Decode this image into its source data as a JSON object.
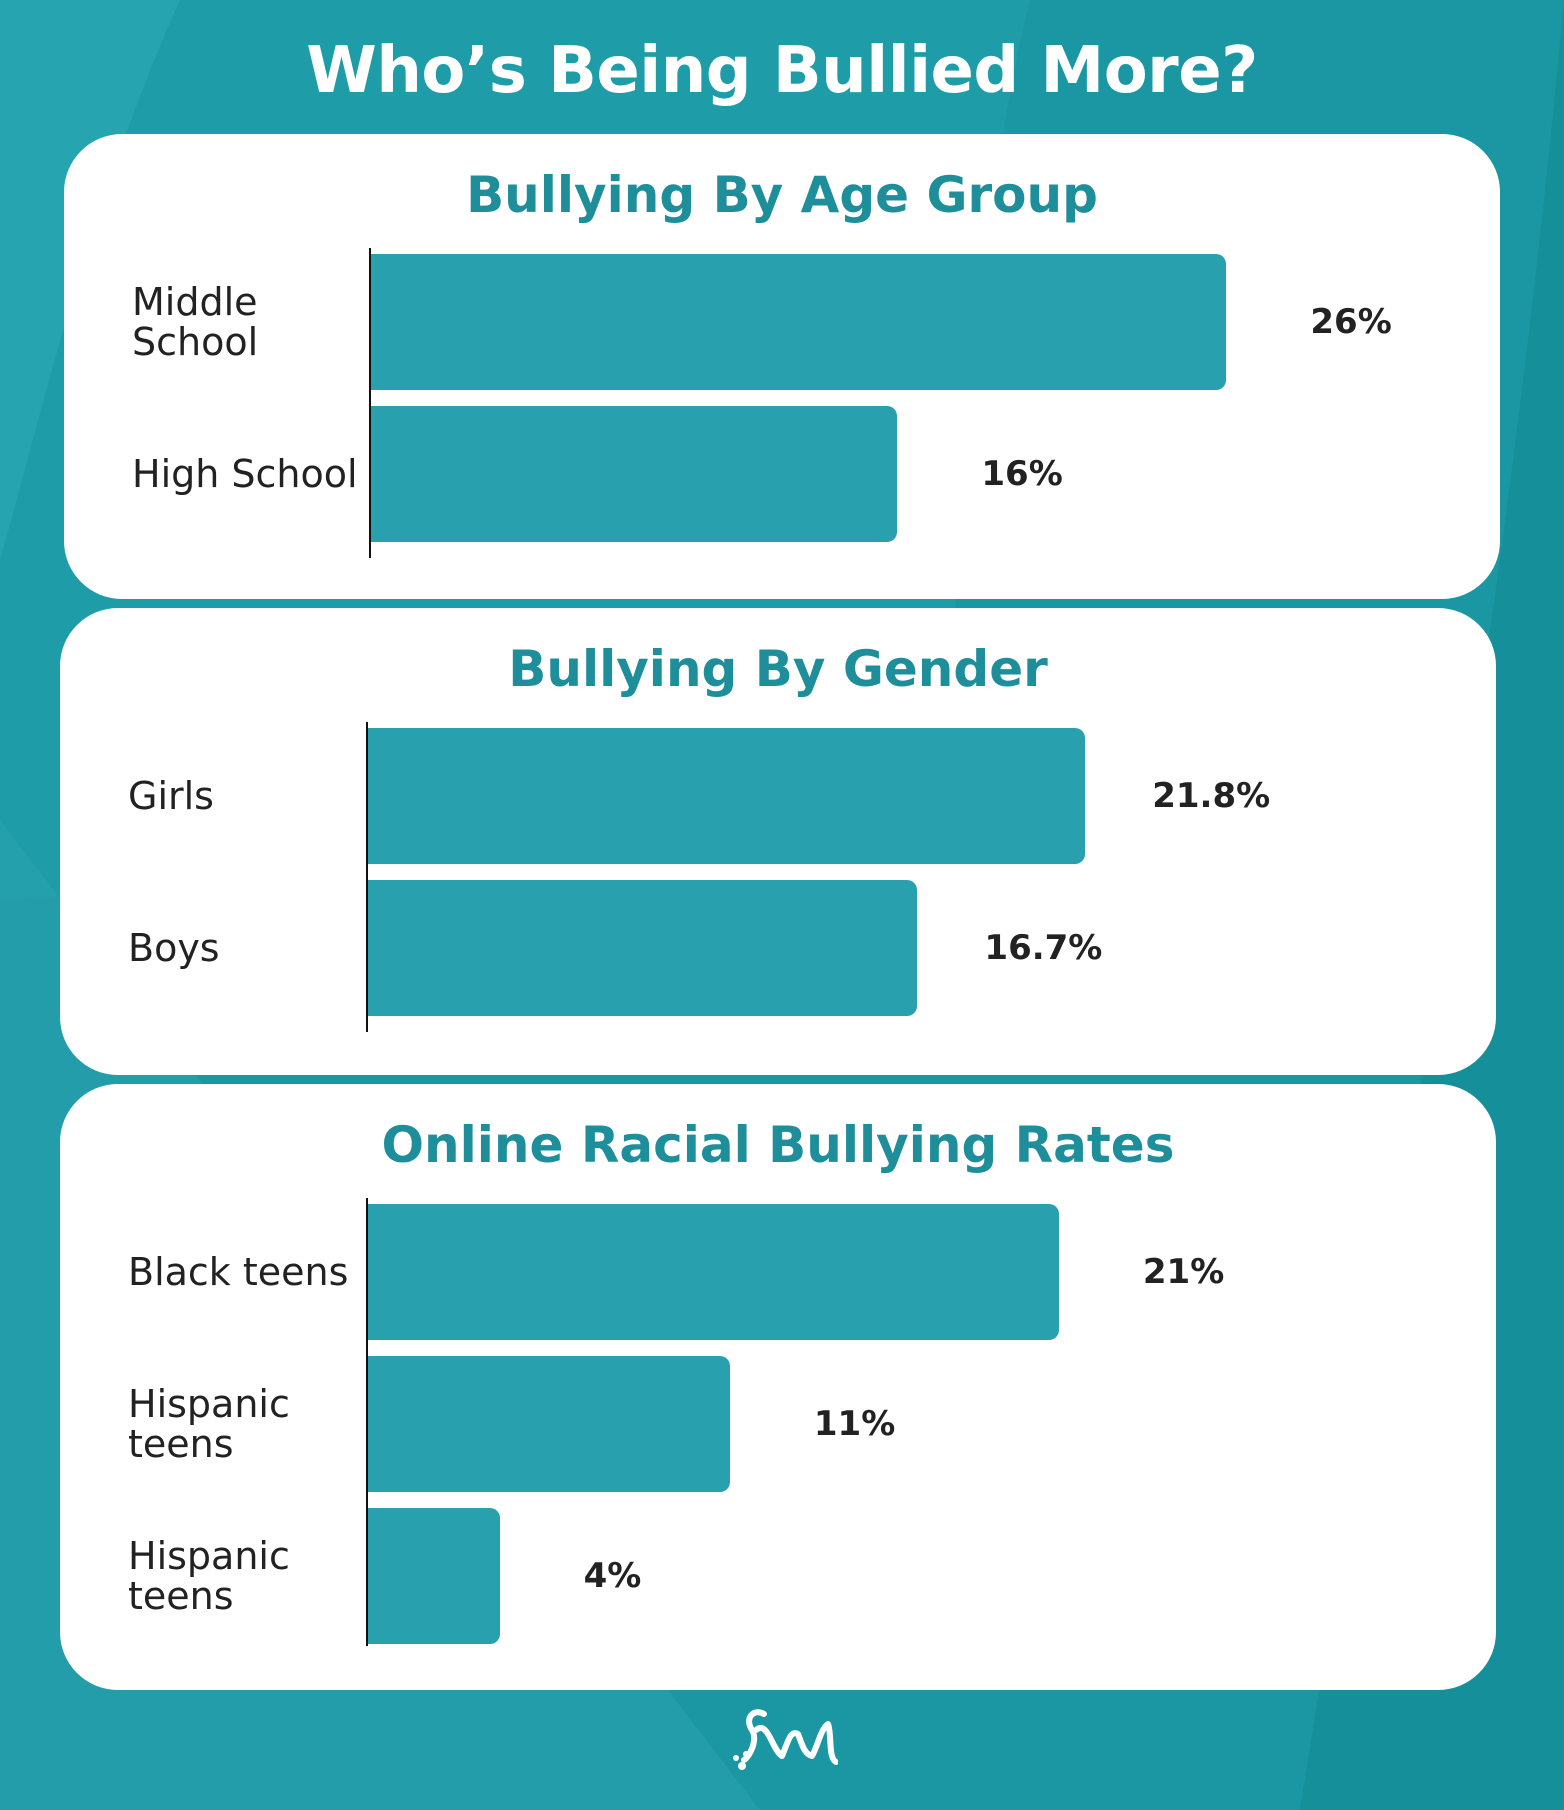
{
  "page": {
    "title": "Who’s Being Bullied More?",
    "colors": {
      "background": "#1a97a3",
      "bar": "#29a0ad",
      "panel_title": "#1d8e9a",
      "panel": "#ffffff"
    },
    "logo_icon": "brand-logo-icon"
  },
  "chart_data": [
    {
      "type": "bar",
      "orientation": "horizontal",
      "title": "Bullying By Age Group",
      "categories": [
        "Middle\nSchool",
        "High School"
      ],
      "values": [
        26,
        16
      ],
      "value_labels": [
        "26%",
        "16%"
      ],
      "xlim": [
        0,
        30
      ]
    },
    {
      "type": "bar",
      "orientation": "horizontal",
      "title": "Bullying By Gender",
      "categories": [
        "Girls",
        "Boys"
      ],
      "values": [
        21.8,
        16.7
      ],
      "value_labels": [
        "21.8%",
        "16.7%"
      ],
      "xlim": [
        0,
        30
      ]
    },
    {
      "type": "bar",
      "orientation": "horizontal",
      "title": "Online Racial Bullying Rates",
      "categories": [
        "Black teens",
        "Hispanic\nteens",
        "Hispanic\nteens"
      ],
      "values": [
        21,
        11,
        4
      ],
      "value_labels": [
        "21%",
        "11%",
        "4%"
      ],
      "xlim": [
        0,
        30
      ]
    }
  ]
}
